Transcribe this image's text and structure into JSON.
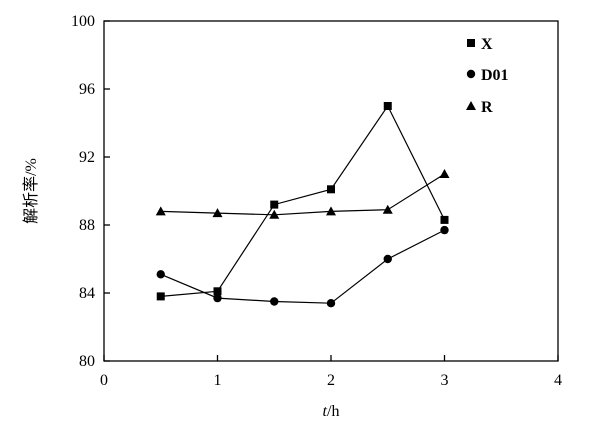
{
  "chart_data": {
    "type": "line",
    "title": "",
    "xlabel_italic": "t",
    "xlabel_unit": "/h",
    "ylabel": "解析率/%",
    "xlim": [
      0,
      4
    ],
    "ylim": [
      80,
      100
    ],
    "xticks": [
      0,
      1,
      2,
      3,
      4
    ],
    "yticks": [
      80,
      84,
      88,
      92,
      96,
      100
    ],
    "grid": false,
    "legend_position": "top-right",
    "series": [
      {
        "name": "X",
        "marker": "square",
        "x": [
          0.5,
          1.0,
          1.5,
          2.0,
          2.5,
          3.0
        ],
        "y": [
          83.8,
          84.1,
          89.2,
          90.1,
          95.0,
          88.3
        ]
      },
      {
        "name": "D01",
        "marker": "circle",
        "x": [
          0.5,
          1.0,
          1.5,
          2.0,
          2.5,
          3.0
        ],
        "y": [
          85.1,
          83.7,
          83.5,
          83.4,
          86.0,
          87.7
        ]
      },
      {
        "name": "R",
        "marker": "triangle",
        "x": [
          0.5,
          1.0,
          1.5,
          2.0,
          2.5,
          3.0
        ],
        "y": [
          88.8,
          88.7,
          88.6,
          88.8,
          88.9,
          91.0
        ]
      }
    ]
  }
}
